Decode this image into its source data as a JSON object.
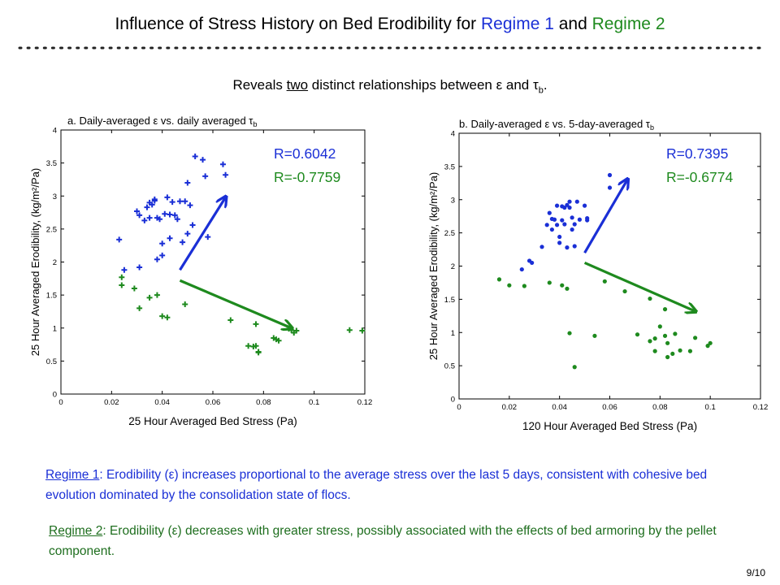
{
  "title": {
    "prefix": "Influence of Stress History on Bed Erodibility for ",
    "regime1": "Regime 1",
    "and": " and ",
    "regime2": "Regime 2"
  },
  "subtitle": {
    "pre": "Reveals ",
    "underlined": "two",
    "post": " distinct relationships between ε and τ",
    "sub": "b",
    "end": "."
  },
  "paragraphs": [
    {
      "label": "Regime 1",
      "text": ": Erodibility (ε) increases proportional to the average stress over the last 5 days, consistent with cohesive bed evolution dominated by the consolidation state of flocs."
    },
    {
      "label": "Regime 2",
      "text": ": Erodibility (ε) decreases with greater stress, possibly associated with the effects of bed armoring by the pellet component."
    }
  ],
  "page_number": "9/10",
  "colors": {
    "blue": "#1a2fd6",
    "green": "#1e8a1e"
  },
  "chart_data": [
    {
      "type": "scatter",
      "title": "a. Daily-averaged ε vs. daily averaged τ",
      "title_sub": "b",
      "xlabel": "25 Hour Averaged Bed Stress (Pa)",
      "ylabel": "25 Hour Averaged Erodibility, (kg/m²/Pa)",
      "xlim": [
        0,
        0.12
      ],
      "ylim": [
        0,
        4
      ],
      "xticks": [
        "0",
        "0.02",
        "0.04",
        "0.06",
        "0.08",
        "0.1",
        "0.12"
      ],
      "yticks": [
        "0",
        "0.5",
        "1",
        "1.5",
        "2",
        "2.5",
        "3",
        "3.5",
        "4"
      ],
      "marker": "plus",
      "annotations": [
        {
          "text": "R=0.6042",
          "color": "#1a2fd6"
        },
        {
          "text": "R=-0.7759",
          "color": "#1e8a1e"
        }
      ],
      "arrows": [
        {
          "color": "#1a2fd6",
          "from": [
            0.047,
            1.88
          ],
          "to": [
            0.065,
            2.98
          ]
        },
        {
          "color": "#1e8a1e",
          "from": [
            0.047,
            1.72
          ],
          "to": [
            0.091,
            1.0
          ]
        }
      ],
      "series": [
        {
          "name": "Regime 1",
          "color": "#1a2fd6",
          "points": [
            [
              0.023,
              2.34
            ],
            [
              0.025,
              1.88
            ],
            [
              0.03,
              2.77
            ],
            [
              0.031,
              2.71
            ],
            [
              0.031,
              1.92
            ],
            [
              0.033,
              2.63
            ],
            [
              0.034,
              2.83
            ],
            [
              0.035,
              2.67
            ],
            [
              0.035,
              2.9
            ],
            [
              0.036,
              2.87
            ],
            [
              0.037,
              2.95
            ],
            [
              0.037,
              2.93
            ],
            [
              0.038,
              2.67
            ],
            [
              0.038,
              2.04
            ],
            [
              0.039,
              2.65
            ],
            [
              0.04,
              2.1
            ],
            [
              0.04,
              2.28
            ],
            [
              0.041,
              2.73
            ],
            [
              0.042,
              2.98
            ],
            [
              0.043,
              2.72
            ],
            [
              0.043,
              2.36
            ],
            [
              0.044,
              2.91
            ],
            [
              0.045,
              2.71
            ],
            [
              0.046,
              2.65
            ],
            [
              0.047,
              2.92
            ],
            [
              0.048,
              2.3
            ],
            [
              0.049,
              2.92
            ],
            [
              0.05,
              2.43
            ],
            [
              0.05,
              3.2
            ],
            [
              0.051,
              2.86
            ],
            [
              0.052,
              2.56
            ],
            [
              0.053,
              3.6
            ],
            [
              0.056,
              3.55
            ],
            [
              0.057,
              3.3
            ],
            [
              0.058,
              2.38
            ],
            [
              0.064,
              3.48
            ],
            [
              0.065,
              3.32
            ]
          ]
        },
        {
          "name": "Regime 2",
          "color": "#1e8a1e",
          "points": [
            [
              0.024,
              1.77
            ],
            [
              0.024,
              1.65
            ],
            [
              0.029,
              1.6
            ],
            [
              0.031,
              1.3
            ],
            [
              0.035,
              1.46
            ],
            [
              0.038,
              1.5
            ],
            [
              0.04,
              1.18
            ],
            [
              0.042,
              1.16
            ],
            [
              0.049,
              1.36
            ],
            [
              0.067,
              1.12
            ],
            [
              0.074,
              0.73
            ],
            [
              0.076,
              0.72
            ],
            [
              0.077,
              1.06
            ],
            [
              0.077,
              0.73
            ],
            [
              0.078,
              0.63
            ],
            [
              0.078,
              0.64
            ],
            [
              0.084,
              0.85
            ],
            [
              0.085,
              0.83
            ],
            [
              0.086,
              0.81
            ],
            [
              0.09,
              0.99
            ],
            [
              0.091,
              0.97
            ],
            [
              0.092,
              0.93
            ],
            [
              0.093,
              0.96
            ],
            [
              0.114,
              0.97
            ],
            [
              0.119,
              0.96
            ]
          ]
        }
      ]
    },
    {
      "type": "scatter",
      "title": "b. Daily-averaged ε vs. 5-day-averaged τ",
      "title_sub": "b",
      "xlabel": "120 Hour Averaged Bed Stress (Pa)",
      "ylabel": "25 Hour Averaged Erodibility, (kg/m²/Pa)",
      "xlim": [
        0,
        0.12
      ],
      "ylim": [
        0,
        4
      ],
      "xticks": [
        "0",
        "0.02",
        "0.04",
        "0.06",
        "0.08",
        "0.1",
        "0.12"
      ],
      "yticks": [
        "0",
        "0.5",
        "1",
        "1.5",
        "2",
        "2.5",
        "3",
        "3.5",
        "4"
      ],
      "marker": "dot",
      "annotations": [
        {
          "text": "R=0.7395",
          "color": "#1a2fd6"
        },
        {
          "text": "R=-0.6774",
          "color": "#1e8a1e"
        }
      ],
      "arrows": [
        {
          "color": "#1a2fd6",
          "from": [
            0.05,
            2.2
          ],
          "to": [
            0.067,
            3.3
          ]
        },
        {
          "color": "#1e8a1e",
          "from": [
            0.05,
            2.05
          ],
          "to": [
            0.094,
            1.32
          ]
        }
      ],
      "series": [
        {
          "name": "Regime 1",
          "color": "#1a2fd6",
          "points": [
            [
              0.025,
              1.95
            ],
            [
              0.028,
              2.08
            ],
            [
              0.029,
              2.05
            ],
            [
              0.033,
              2.29
            ],
            [
              0.035,
              2.62
            ],
            [
              0.036,
              2.8
            ],
            [
              0.037,
              2.55
            ],
            [
              0.037,
              2.71
            ],
            [
              0.038,
              2.7
            ],
            [
              0.039,
              2.62
            ],
            [
              0.039,
              2.91
            ],
            [
              0.04,
              2.44
            ],
            [
              0.04,
              2.35
            ],
            [
              0.041,
              2.9
            ],
            [
              0.041,
              2.69
            ],
            [
              0.042,
              2.63
            ],
            [
              0.042,
              2.88
            ],
            [
              0.043,
              2.28
            ],
            [
              0.043,
              2.92
            ],
            [
              0.044,
              2.88
            ],
            [
              0.044,
              2.97
            ],
            [
              0.045,
              2.73
            ],
            [
              0.045,
              2.55
            ],
            [
              0.046,
              2.63
            ],
            [
              0.046,
              2.3
            ],
            [
              0.047,
              2.97
            ],
            [
              0.048,
              2.7
            ],
            [
              0.05,
              2.91
            ],
            [
              0.051,
              2.72
            ],
            [
              0.051,
              2.69
            ],
            [
              0.06,
              3.37
            ],
            [
              0.06,
              3.18
            ]
          ]
        },
        {
          "name": "Regime 2",
          "color": "#1e8a1e",
          "points": [
            [
              0.016,
              1.8
            ],
            [
              0.02,
              1.71
            ],
            [
              0.026,
              1.7
            ],
            [
              0.036,
              1.75
            ],
            [
              0.041,
              1.71
            ],
            [
              0.043,
              1.66
            ],
            [
              0.044,
              0.99
            ],
            [
              0.046,
              0.48
            ],
            [
              0.054,
              0.95
            ],
            [
              0.058,
              1.77
            ],
            [
              0.066,
              1.62
            ],
            [
              0.071,
              0.97
            ],
            [
              0.076,
              1.51
            ],
            [
              0.076,
              0.87
            ],
            [
              0.078,
              0.91
            ],
            [
              0.078,
              0.72
            ],
            [
              0.08,
              1.09
            ],
            [
              0.082,
              0.95
            ],
            [
              0.082,
              1.35
            ],
            [
              0.083,
              0.63
            ],
            [
              0.083,
              0.84
            ],
            [
              0.085,
              0.68
            ],
            [
              0.086,
              0.98
            ],
            [
              0.088,
              0.73
            ],
            [
              0.092,
              0.72
            ],
            [
              0.094,
              0.92
            ],
            [
              0.099,
              0.8
            ],
            [
              0.1,
              0.84
            ]
          ]
        }
      ]
    }
  ]
}
